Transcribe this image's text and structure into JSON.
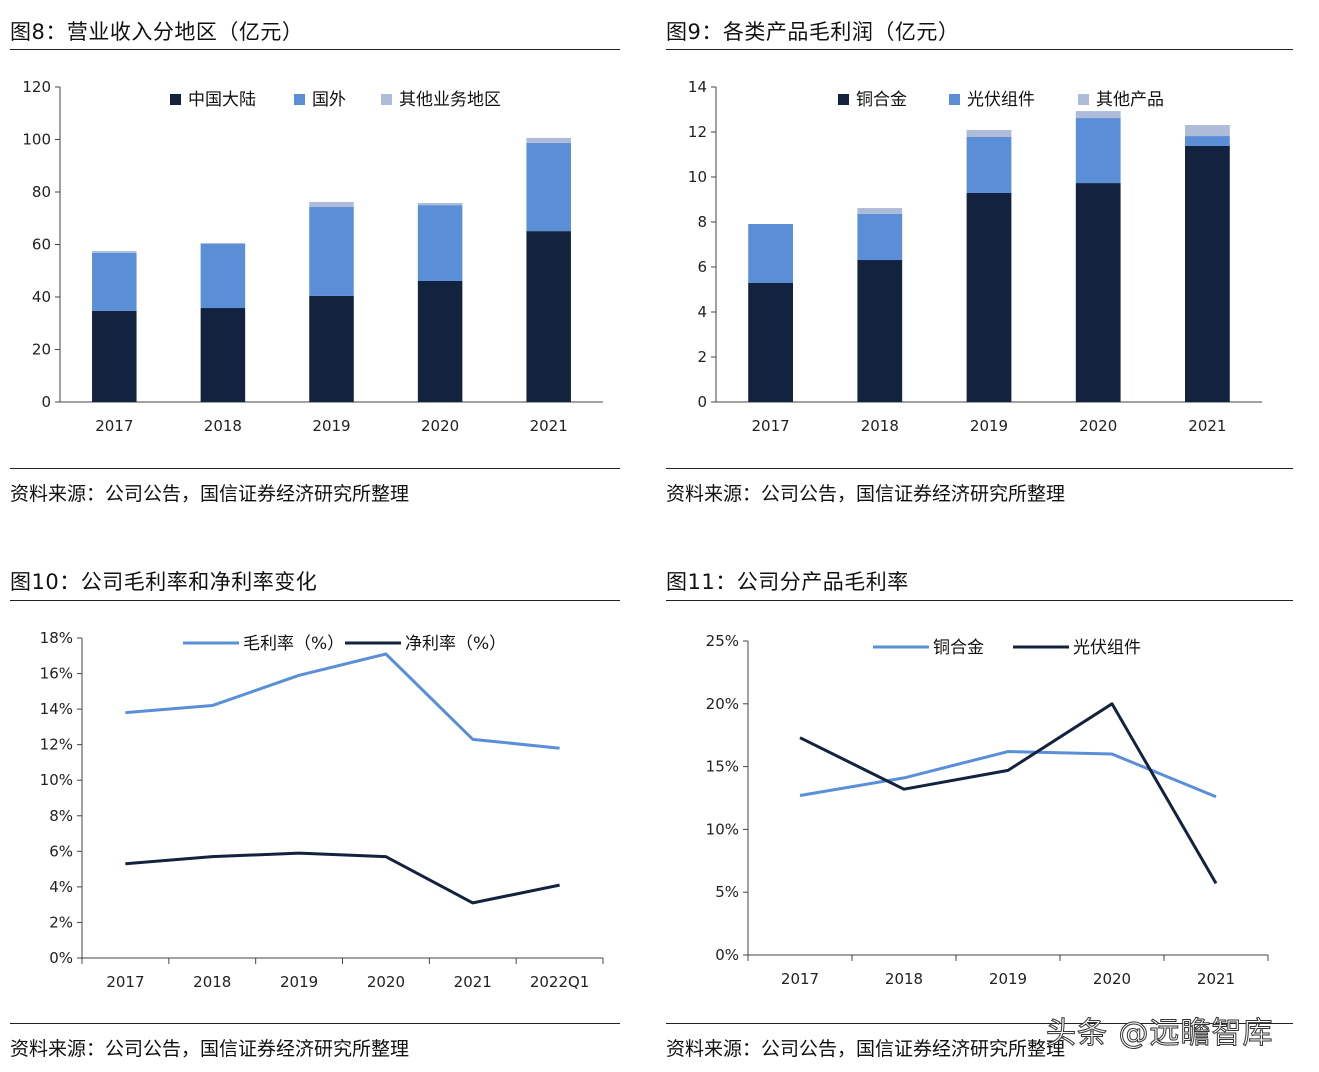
{
  "panels": [
    {
      "title": "图8：营业收入分地区（亿元）",
      "source": "资料来源：公司公告，国信证券经济研究所整理"
    },
    {
      "title": "图9：各类产品毛利润（亿元）",
      "source": "资料来源：公司公告，国信证券经济研究所整理"
    },
    {
      "title": "图10：公司毛利率和净利率变化",
      "source": "资料来源：公司公告，国信证券经济研究所整理"
    },
    {
      "title": "图11：公司分产品毛利率",
      "source": "资料来源：公司公告，国信证券经济研究所整理"
    }
  ],
  "watermark": "头条 @远瞻智库",
  "colors": {
    "dark": "#13223f",
    "blue": "#5a8fd8",
    "light": "#aebbd9",
    "axis": "#444444"
  },
  "chart_data": [
    {
      "type": "bar",
      "stacked": true,
      "title": "图8：营业收入分地区（亿元）",
      "categories": [
        "2017",
        "2018",
        "2019",
        "2020",
        "2021"
      ],
      "ylim": [
        0,
        120
      ],
      "yticks": [
        "0",
        "20",
        "40",
        "60",
        "80",
        "100",
        "120"
      ],
      "ystep": 20,
      "legend": "top",
      "grid": false,
      "series": [
        {
          "name": "中国大陆",
          "color": "#13223f",
          "values": [
            34.7,
            35.8,
            40.4,
            46.1,
            65.1
          ]
        },
        {
          "name": "国外",
          "color": "#5a8fd8",
          "values": [
            22.1,
            24.4,
            33.9,
            28.9,
            33.6
          ]
        },
        {
          "name": "其他业务地区",
          "color": "#aebbd9",
          "values": [
            0.7,
            0.4,
            1.9,
            0.8,
            1.9
          ]
        }
      ]
    },
    {
      "type": "bar",
      "stacked": true,
      "title": "图9：各类产品毛利润（亿元）",
      "categories": [
        "2017",
        "2018",
        "2019",
        "2020",
        "2021"
      ],
      "ylim": [
        0,
        14
      ],
      "yticks": [
        "0",
        "2",
        "4",
        "6",
        "8",
        "10",
        "12",
        "14"
      ],
      "ystep": 2,
      "legend": "top",
      "grid": false,
      "series": [
        {
          "name": "铜合金",
          "color": "#13223f",
          "values": [
            5.29,
            6.31,
            9.29,
            9.73,
            11.38
          ]
        },
        {
          "name": "光伏组件",
          "color": "#5a8fd8",
          "values": [
            2.62,
            2.05,
            2.49,
            2.89,
            0.44
          ]
        },
        {
          "name": "其他产品",
          "color": "#aebbd9",
          "values": [
            0.0,
            0.26,
            0.31,
            0.31,
            0.49
          ]
        }
      ]
    },
    {
      "type": "line",
      "title": "图10：公司毛利率和净利率变化",
      "categories": [
        "2017",
        "2018",
        "2019",
        "2020",
        "2021",
        "2022Q1"
      ],
      "ylim": [
        0,
        18
      ],
      "yticks": [
        "0%",
        "2%",
        "4%",
        "6%",
        "8%",
        "10%",
        "12%",
        "14%",
        "16%",
        "18%"
      ],
      "ystep": 2,
      "legend": "top",
      "grid": false,
      "series": [
        {
          "name": "毛利率（%）",
          "color": "#5a8fd8",
          "values": [
            13.8,
            14.2,
            15.9,
            17.1,
            12.3,
            11.8
          ]
        },
        {
          "name": "净利率（%）",
          "color": "#13223f",
          "values": [
            5.3,
            5.7,
            5.9,
            5.7,
            3.1,
            4.1
          ]
        }
      ]
    },
    {
      "type": "line",
      "title": "图11：公司分产品毛利率",
      "categories": [
        "2017",
        "2018",
        "2019",
        "2020",
        "2021"
      ],
      "ylim": [
        0,
        25
      ],
      "yticks": [
        "0%",
        "5%",
        "10%",
        "15%",
        "20%",
        "25%"
      ],
      "ystep": 5,
      "legend": "top",
      "grid": false,
      "series": [
        {
          "name": "铜合金",
          "color": "#5a8fd8",
          "values": [
            12.7,
            14.1,
            16.2,
            16.0,
            12.6
          ]
        },
        {
          "name": "光伏组件",
          "color": "#13223f",
          "values": [
            17.3,
            13.2,
            14.7,
            20.0,
            5.7
          ]
        }
      ]
    }
  ]
}
